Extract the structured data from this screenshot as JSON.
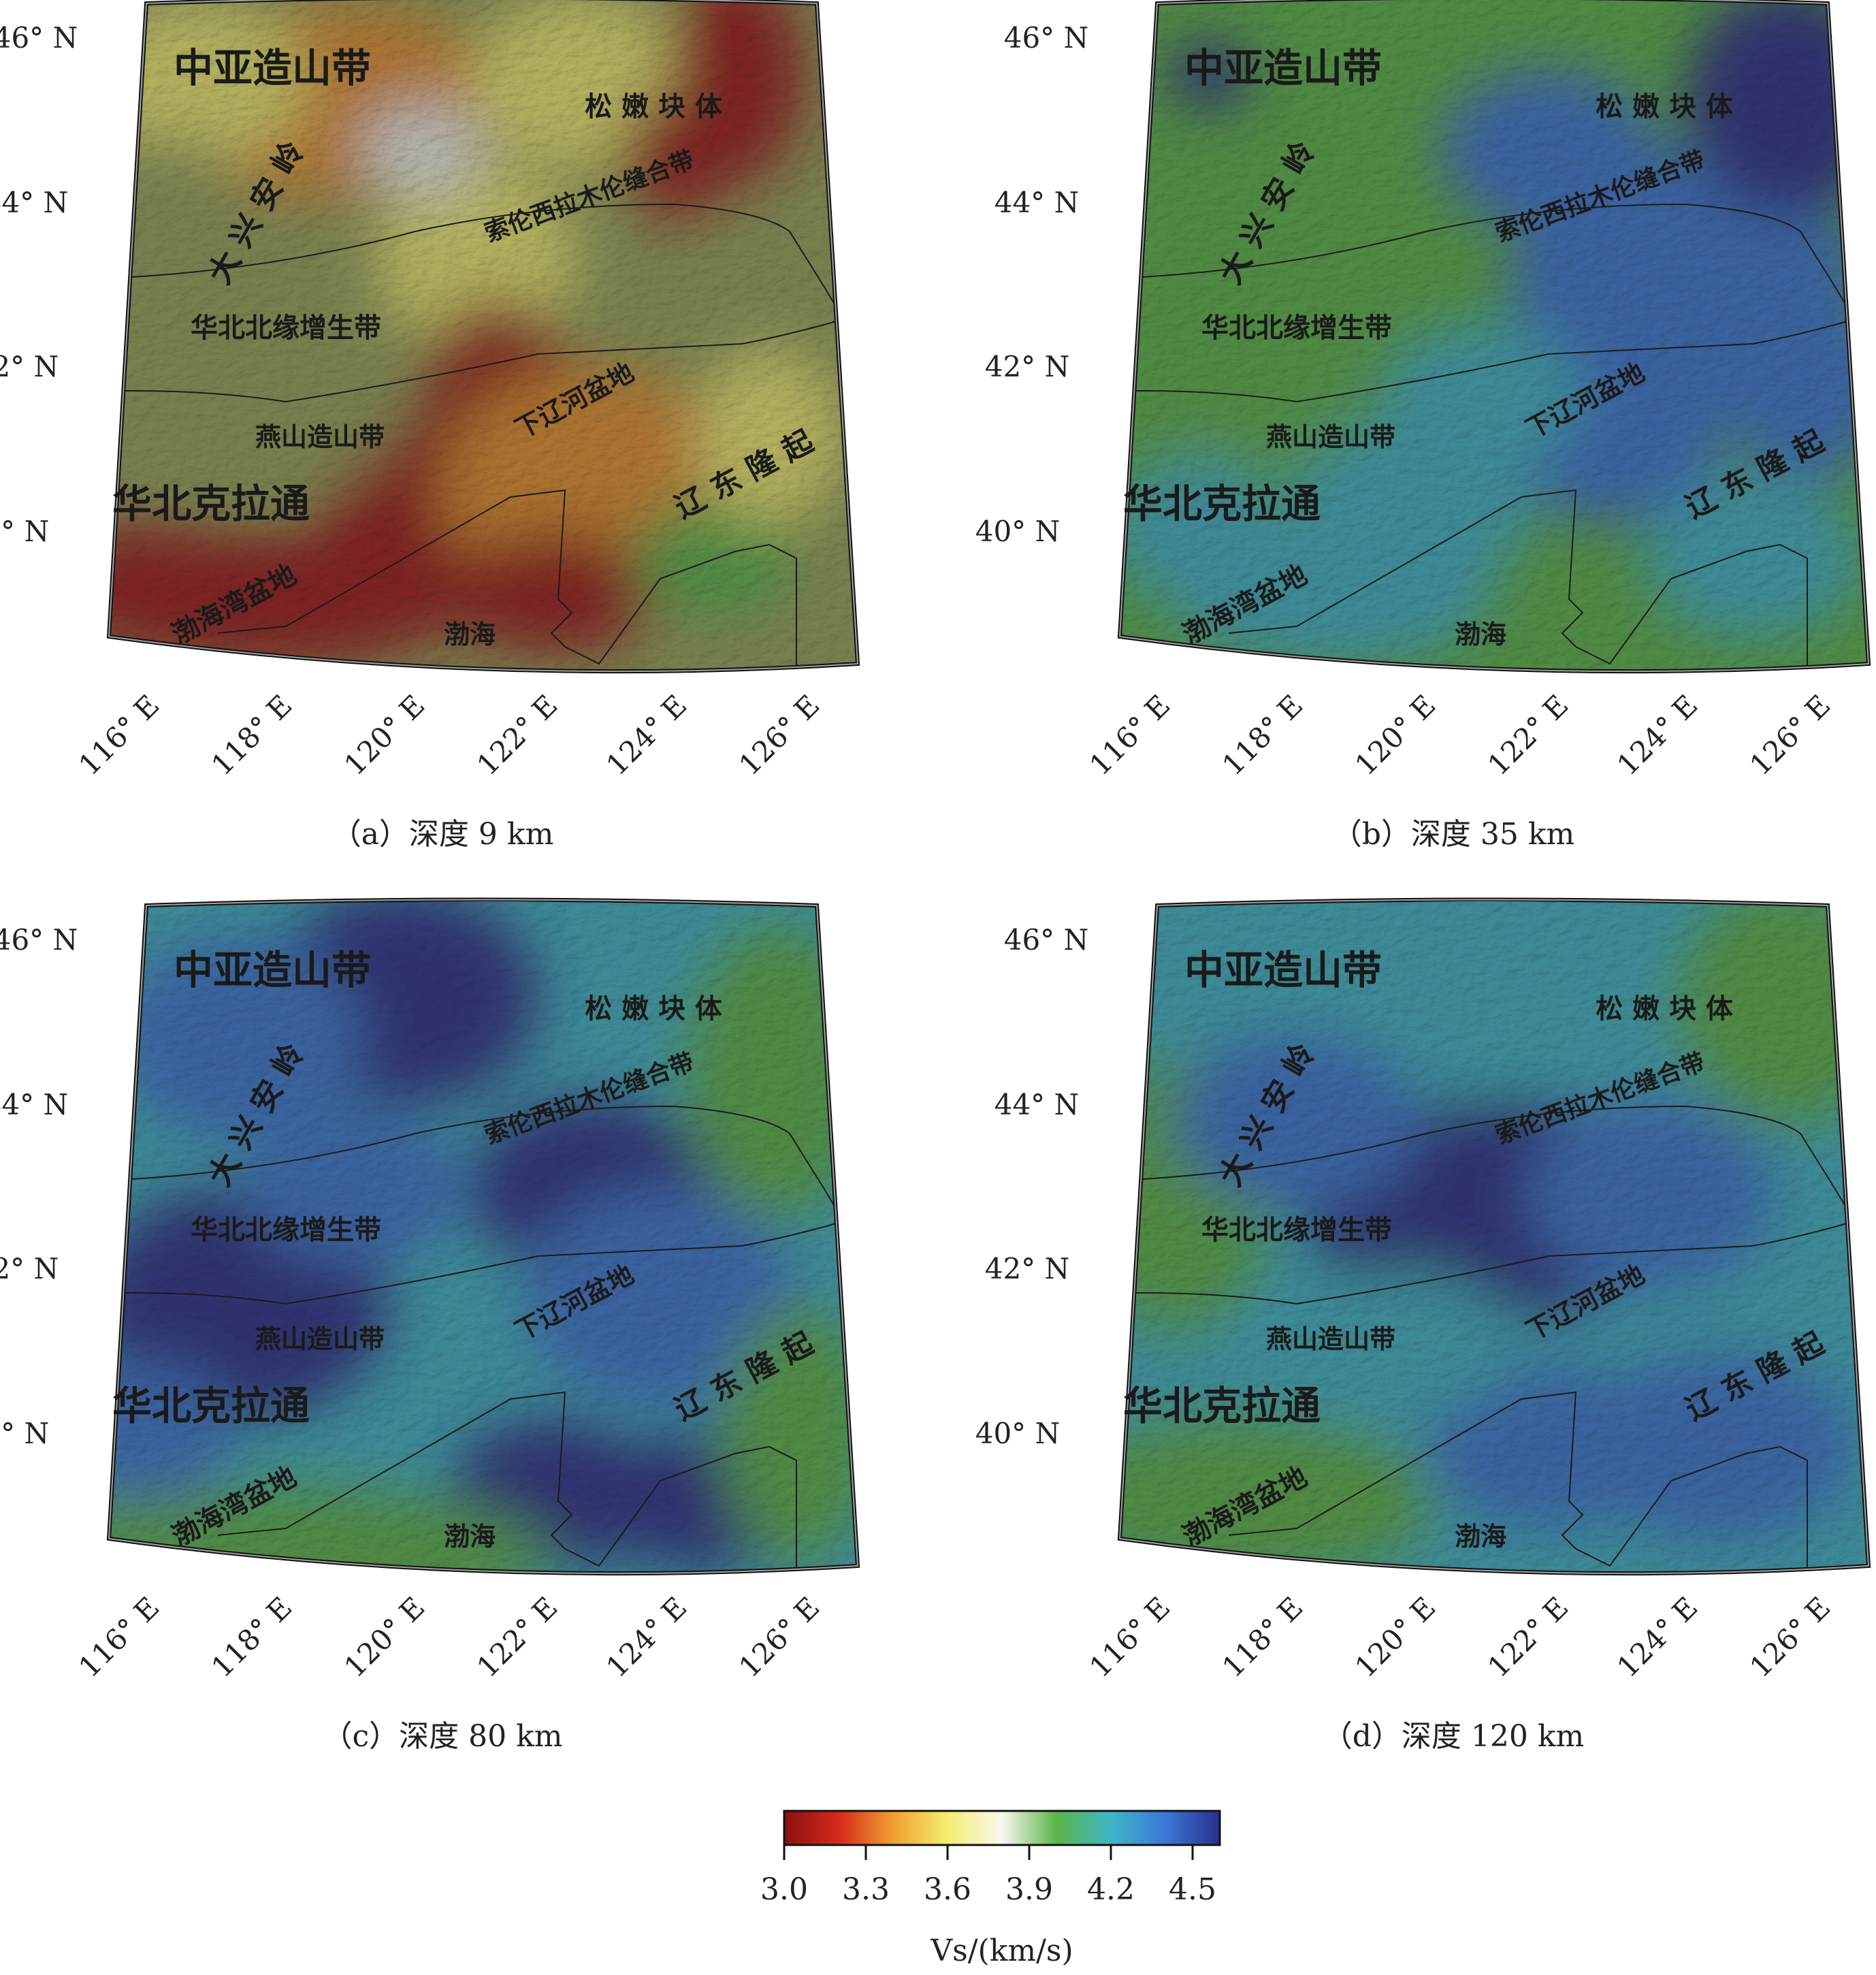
{
  "colors": {
    "red": "#a01818",
    "orange": "#e8912a",
    "yellow": "#f2ef72",
    "white": "#f4f6ee",
    "green": "#5cb548",
    "teal": "#3fb5c8",
    "blue": "#3a78d6",
    "navy": "#2a2f8c",
    "olive": "#9aa55a"
  },
  "map": {
    "lat_labels": [
      "46° N",
      "44° N",
      "42° N",
      "40° N"
    ],
    "lon_labels": [
      "116° E",
      "118° E",
      "120° E",
      "122° E",
      "124° E",
      "126° E"
    ],
    "regions": {
      "central_asia_orogen": "中亚造山带",
      "songnen_block": "松 嫩 块 体",
      "daxinganling": "大 兴 安 岭",
      "solonker_suture": "索伦西拉木伦缝合带",
      "north_margin_accretion": "华北北缘增生带",
      "yanshan_orogen": "燕山造山带",
      "lower_liaohe_basin": "下辽河盆地",
      "north_china_craton": "华北克拉通",
      "liaodong_uplift": "辽 东 隆 起",
      "bohai_bay_basin": "渤海湾盆地",
      "bohai": "渤海"
    }
  },
  "panels": [
    {
      "id": "a",
      "caption": "（a）深度 9 km",
      "palette": "shallow"
    },
    {
      "id": "b",
      "caption": "（b）深度 35 km",
      "palette": "mid"
    },
    {
      "id": "c",
      "caption": "（c）深度 80 km",
      "palette": "deep"
    },
    {
      "id": "d",
      "caption": "（d）深度 120 km",
      "palette": "deeper"
    }
  ],
  "colorbar": {
    "ticks": [
      "3.0",
      "3.3",
      "3.6",
      "3.9",
      "4.2",
      "4.5"
    ],
    "min": 3.0,
    "max": 4.6,
    "label": "Vs/(km/s)",
    "stops": [
      "#8a1010",
      "#d42a1a",
      "#f0a030",
      "#f4ee70",
      "#f8f8f0",
      "#5cb548",
      "#3fb5c8",
      "#3a78d6",
      "#2a2f8c"
    ]
  }
}
